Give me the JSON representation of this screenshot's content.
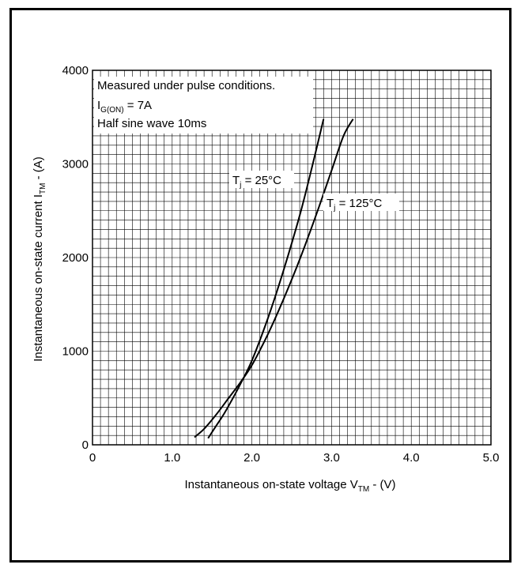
{
  "chart_data": {
    "type": "line",
    "xlabel": {
      "main": "Instantaneous on-state voltage V",
      "sub": "TM",
      "suffix": " - (V)"
    },
    "ylabel": {
      "main": "Instantaneous on-state current I",
      "sub": "TM",
      "suffix": " - (A)"
    },
    "xlim": [
      0,
      5
    ],
    "ylim": [
      0,
      4000
    ],
    "x_ticks": [
      0,
      1,
      2,
      3,
      4,
      5
    ],
    "x_tick_labels": [
      "0",
      "1.0",
      "2.0",
      "3.0",
      "4.0",
      "5.0"
    ],
    "y_ticks": [
      0,
      1000,
      2000,
      3000,
      4000
    ],
    "y_tick_labels": [
      "0",
      "1000",
      "2000",
      "3000",
      "4000"
    ],
    "grid": true,
    "grid_step": {
      "x": 0.1,
      "y": 100
    },
    "line_color": "#000000",
    "grid_color": "#000000",
    "annotation": {
      "line1": "Measured under pulse conditions.",
      "line2_main": "I",
      "line2_sub": "G(ON)",
      "line2_rest": " = 7A",
      "line3": "Half sine wave 10ms"
    },
    "series": [
      {
        "label_main": "T",
        "label_sub": "j",
        "label_rest": " = 25°C",
        "x": [
          1.45,
          1.55,
          1.65,
          1.75,
          1.85,
          2.0,
          2.2,
          2.4,
          2.6,
          2.75,
          2.9
        ],
        "y": [
          70,
          200,
          330,
          480,
          640,
          900,
          1350,
          1870,
          2450,
          2950,
          3480
        ]
      },
      {
        "label_main": "T",
        "label_sub": "j",
        "label_rest": " = 125°C",
        "x": [
          1.28,
          1.4,
          1.55,
          1.7,
          1.85,
          2.0,
          2.2,
          2.4,
          2.6,
          2.8,
          3.0,
          3.15,
          3.27
        ],
        "y": [
          80,
          170,
          320,
          490,
          660,
          850,
          1180,
          1560,
          1980,
          2440,
          2930,
          3300,
          3480
        ]
      }
    ]
  }
}
